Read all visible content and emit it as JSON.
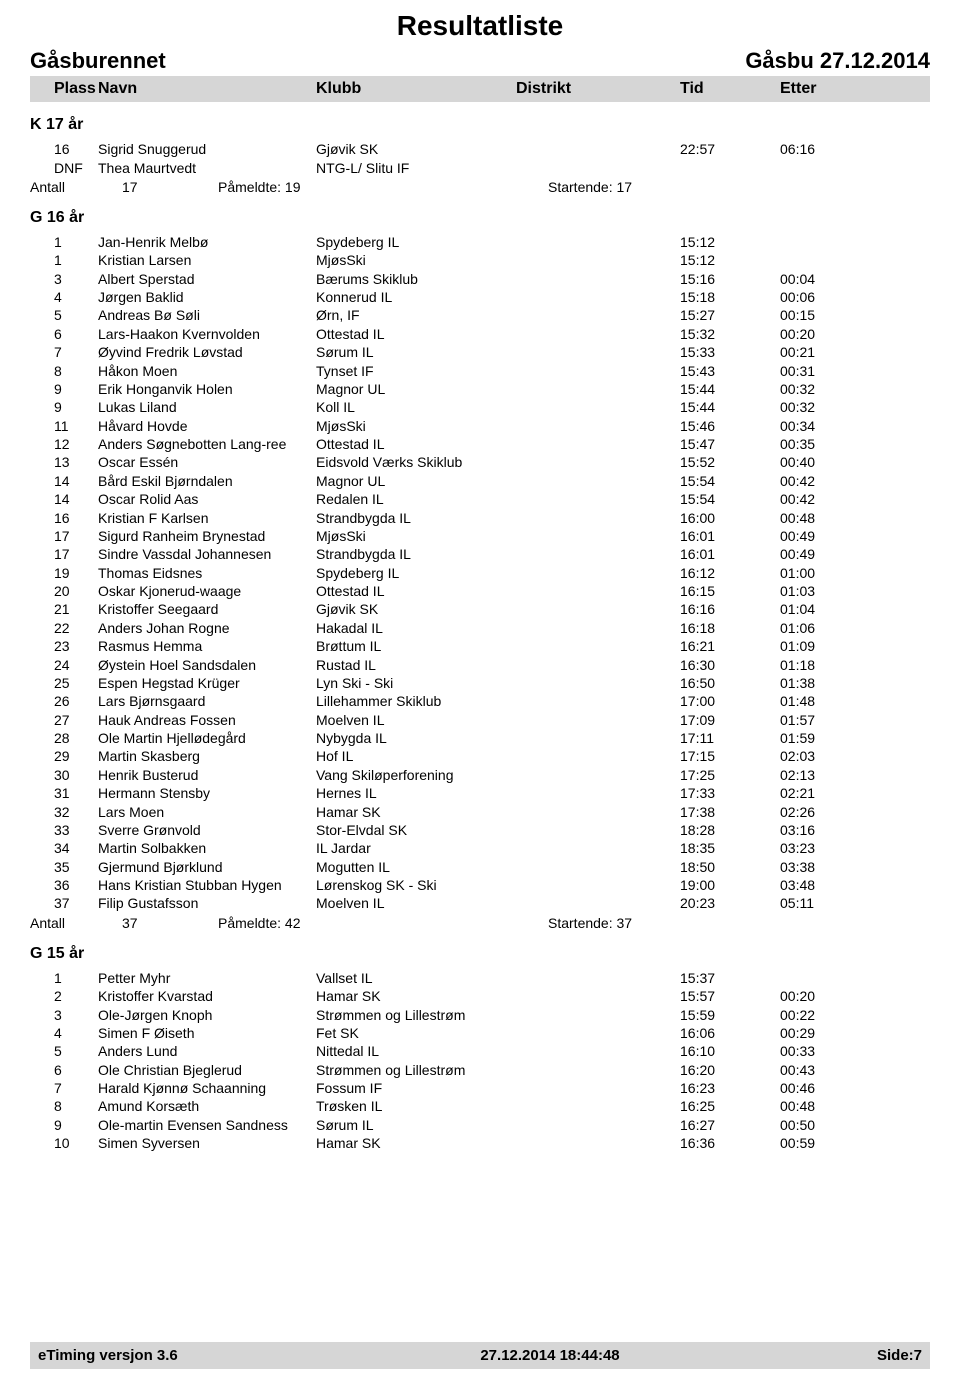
{
  "title": "Resultatliste",
  "event_name": "Gåsburennet",
  "event_place_date": "Gåsbu  27.12.2014",
  "columns": {
    "plass": "Plass",
    "navn": "Navn",
    "klubb": "Klubb",
    "distrikt": "Distrikt",
    "tid": "Tid",
    "etter": "Etter"
  },
  "colors": {
    "band_bg": "#d6d6d6",
    "page_bg": "#ffffff",
    "text": "#000000"
  },
  "fonts": {
    "title_pt": 28,
    "subhead_pt": 22,
    "colhead_pt": 16,
    "group_pt": 16,
    "row_pt": 14,
    "footer_pt": 15
  },
  "groups": [
    {
      "title": "K 17 år",
      "rows": [
        {
          "plass": "16",
          "navn": "Sigrid Snuggerud",
          "klubb": "Gjøvik SK",
          "tid": "22:57",
          "etter": "06:16"
        },
        {
          "plass": "DNF",
          "navn": "Thea Maurtvedt",
          "klubb": "NTG-L/ Slitu IF",
          "tid": "",
          "etter": ""
        }
      ],
      "summary": {
        "antall_label": "Antall",
        "antall": "17",
        "pameldte": "Påmeldte: 19",
        "startende": "Startende: 17"
      }
    },
    {
      "title": "G 16 år",
      "rows": [
        {
          "plass": "1",
          "navn": "Jan-Henrik Melbø",
          "klubb": "Spydeberg IL",
          "tid": "15:12",
          "etter": ""
        },
        {
          "plass": "1",
          "navn": "Kristian Larsen",
          "klubb": "MjøsSki",
          "tid": "15:12",
          "etter": ""
        },
        {
          "plass": "3",
          "navn": "Albert Sperstad",
          "klubb": "Bærums Skiklub",
          "tid": "15:16",
          "etter": "00:04"
        },
        {
          "plass": "4",
          "navn": "Jørgen Baklid",
          "klubb": "Konnerud IL",
          "tid": "15:18",
          "etter": "00:06"
        },
        {
          "plass": "5",
          "navn": "Andreas Bø Søli",
          "klubb": "Ørn, IF",
          "tid": "15:27",
          "etter": "00:15"
        },
        {
          "plass": "6",
          "navn": "Lars-Haakon Kvernvolden",
          "klubb": "Ottestad IL",
          "tid": "15:32",
          "etter": "00:20"
        },
        {
          "plass": "7",
          "navn": "Øyvind Fredrik Løvstad",
          "klubb": "Sørum IL",
          "tid": "15:33",
          "etter": "00:21"
        },
        {
          "plass": "8",
          "navn": "Håkon Moen",
          "klubb": "Tynset IF",
          "tid": "15:43",
          "etter": "00:31"
        },
        {
          "plass": "9",
          "navn": "Erik Honganvik Holen",
          "klubb": "Magnor UL",
          "tid": "15:44",
          "etter": "00:32"
        },
        {
          "plass": "9",
          "navn": "Lukas Liland",
          "klubb": "Koll IL",
          "tid": "15:44",
          "etter": "00:32"
        },
        {
          "plass": "11",
          "navn": "Håvard Hovde",
          "klubb": "MjøsSki",
          "tid": "15:46",
          "etter": "00:34"
        },
        {
          "plass": "12",
          "navn": "Anders Søgnebotten Lang-ree",
          "klubb": "Ottestad IL",
          "tid": "15:47",
          "etter": "00:35"
        },
        {
          "plass": "13",
          "navn": "Oscar Essén",
          "klubb": "Eidsvold Værks Skiklub",
          "tid": "15:52",
          "etter": "00:40"
        },
        {
          "plass": "14",
          "navn": "Bård Eskil Bjørndalen",
          "klubb": "Magnor UL",
          "tid": "15:54",
          "etter": "00:42"
        },
        {
          "plass": "14",
          "navn": "Oscar Rolid Aas",
          "klubb": "Redalen IL",
          "tid": "15:54",
          "etter": "00:42"
        },
        {
          "plass": "16",
          "navn": "Kristian F Karlsen",
          "klubb": "Strandbygda IL",
          "tid": "16:00",
          "etter": "00:48"
        },
        {
          "plass": "17",
          "navn": "Sigurd Ranheim Brynestad",
          "klubb": "MjøsSki",
          "tid": "16:01",
          "etter": "00:49"
        },
        {
          "plass": "17",
          "navn": "Sindre Vassdal Johannesen",
          "klubb": "Strandbygda IL",
          "tid": "16:01",
          "etter": "00:49"
        },
        {
          "plass": "19",
          "navn": "Thomas Eidsnes",
          "klubb": "Spydeberg IL",
          "tid": "16:12",
          "etter": "01:00"
        },
        {
          "plass": "20",
          "navn": "Oskar Kjonerud-waage",
          "klubb": "Ottestad IL",
          "tid": "16:15",
          "etter": "01:03"
        },
        {
          "plass": "21",
          "navn": "Kristoffer Seegaard",
          "klubb": "Gjøvik SK",
          "tid": "16:16",
          "etter": "01:04"
        },
        {
          "plass": "22",
          "navn": "Anders Johan Rogne",
          "klubb": "Hakadal IL",
          "tid": "16:18",
          "etter": "01:06"
        },
        {
          "plass": "23",
          "navn": "Rasmus Hemma",
          "klubb": "Brøttum IL",
          "tid": "16:21",
          "etter": "01:09"
        },
        {
          "plass": "24",
          "navn": "Øystein Hoel Sandsdalen",
          "klubb": "Rustad IL",
          "tid": "16:30",
          "etter": "01:18"
        },
        {
          "plass": "25",
          "navn": "Espen Hegstad Krüger",
          "klubb": "Lyn Ski - Ski",
          "tid": "16:50",
          "etter": "01:38"
        },
        {
          "plass": "26",
          "navn": "Lars Bjørnsgaard",
          "klubb": "Lillehammer Skiklub",
          "tid": "17:00",
          "etter": "01:48"
        },
        {
          "plass": "27",
          "navn": "Hauk Andreas Fossen",
          "klubb": "Moelven IL",
          "tid": "17:09",
          "etter": "01:57"
        },
        {
          "plass": "28",
          "navn": "Ole Martin Hjellødegård",
          "klubb": "Nybygda IL",
          "tid": "17:11",
          "etter": "01:59"
        },
        {
          "plass": "29",
          "navn": "Martin Skasberg",
          "klubb": "Hof IL",
          "tid": "17:15",
          "etter": "02:03"
        },
        {
          "plass": "30",
          "navn": "Henrik Busterud",
          "klubb": "Vang Skiløperforening",
          "tid": "17:25",
          "etter": "02:13"
        },
        {
          "plass": "31",
          "navn": "Hermann Stensby",
          "klubb": "Hernes IL",
          "tid": "17:33",
          "etter": "02:21"
        },
        {
          "plass": "32",
          "navn": "Lars Moen",
          "klubb": "Hamar SK",
          "tid": "17:38",
          "etter": "02:26"
        },
        {
          "plass": "33",
          "navn": "Sverre Grønvold",
          "klubb": "Stor-Elvdal SK",
          "tid": "18:28",
          "etter": "03:16"
        },
        {
          "plass": "34",
          "navn": "Martin Solbakken",
          "klubb": "IL Jardar",
          "tid": "18:35",
          "etter": "03:23"
        },
        {
          "plass": "35",
          "navn": "Gjermund Bjørklund",
          "klubb": "Mogutten IL",
          "tid": "18:50",
          "etter": "03:38"
        },
        {
          "plass": "36",
          "navn": "Hans Kristian Stubban Hygen",
          "klubb": "Lørenskog SK - Ski",
          "tid": "19:00",
          "etter": "03:48"
        },
        {
          "plass": "37",
          "navn": "Filip Gustafsson",
          "klubb": "Moelven IL",
          "tid": "20:23",
          "etter": "05:11"
        }
      ],
      "summary": {
        "antall_label": "Antall",
        "antall": "37",
        "pameldte": "Påmeldte: 42",
        "startende": "Startende: 37"
      }
    },
    {
      "title": "G 15 år",
      "rows": [
        {
          "plass": "1",
          "navn": "Petter Myhr",
          "klubb": "Vallset IL",
          "tid": "15:37",
          "etter": ""
        },
        {
          "plass": "2",
          "navn": "Kristoffer Kvarstad",
          "klubb": "Hamar SK",
          "tid": "15:57",
          "etter": "00:20"
        },
        {
          "plass": "3",
          "navn": "Ole-Jørgen Knoph",
          "klubb": "Strømmen og Lillestrøm",
          "tid": "15:59",
          "etter": "00:22"
        },
        {
          "plass": "4",
          "navn": "Simen F Øiseth",
          "klubb": "Fet SK",
          "tid": "16:06",
          "etter": "00:29"
        },
        {
          "plass": "5",
          "navn": "Anders Lund",
          "klubb": "Nittedal IL",
          "tid": "16:10",
          "etter": "00:33"
        },
        {
          "plass": "6",
          "navn": "Ole Christian Bjeglerud",
          "klubb": "Strømmen og Lillestrøm",
          "tid": "16:20",
          "etter": "00:43"
        },
        {
          "plass": "7",
          "navn": "Harald Kjønnø Schaanning",
          "klubb": "Fossum IF",
          "tid": "16:23",
          "etter": "00:46"
        },
        {
          "plass": "8",
          "navn": "Amund Korsæth",
          "klubb": "Trøsken IL",
          "tid": "16:25",
          "etter": "00:48"
        },
        {
          "plass": "9",
          "navn": "Ole-martin Evensen Sandness",
          "klubb": "Sørum IL",
          "tid": "16:27",
          "etter": "00:50"
        },
        {
          "plass": "10",
          "navn": "Simen Syversen",
          "klubb": "Hamar SK",
          "tid": "16:36",
          "etter": "00:59"
        }
      ]
    }
  ],
  "footer": {
    "left": "eTiming versjon 3.6",
    "center": "27.12.2014 18:44:48",
    "right": "Side:7"
  }
}
